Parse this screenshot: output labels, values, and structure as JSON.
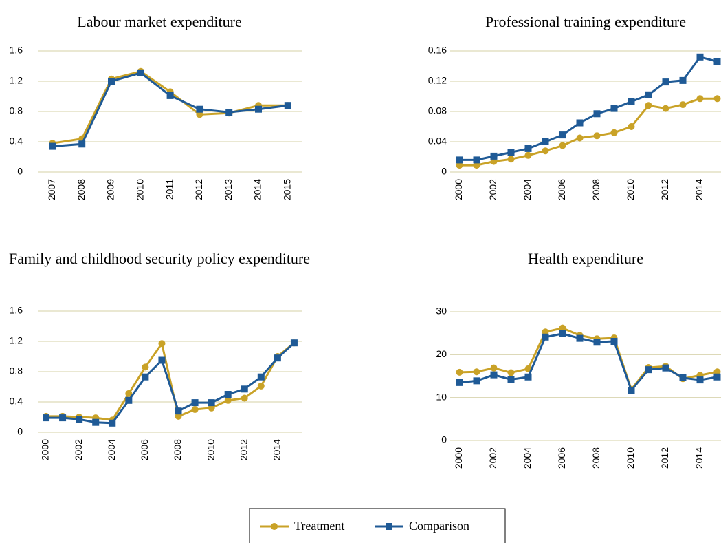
{
  "chart_data": [
    {
      "type": "line",
      "title": "Labour market expenditure",
      "categories": [
        "2007",
        "2008",
        "2009",
        "2010",
        "2011",
        "2012",
        "2013",
        "2014",
        "2015"
      ],
      "series": [
        {
          "name": "Treatment",
          "color": "#c9a227",
          "marker": "circle",
          "values": [
            0.38,
            0.44,
            1.23,
            1.33,
            1.06,
            0.76,
            0.78,
            0.88,
            0.88
          ]
        },
        {
          "name": "Comparison",
          "color": "#1f5a96",
          "marker": "square",
          "values": [
            0.34,
            0.37,
            1.2,
            1.31,
            1.01,
            0.83,
            0.79,
            0.83,
            0.88
          ]
        }
      ],
      "ylim": [
        0,
        1.6
      ],
      "yticks": [
        0,
        0.4,
        0.8,
        1.2,
        1.6
      ],
      "grid": true
    },
    {
      "type": "line",
      "title": "Professional training expenditure",
      "categories": [
        "2000",
        null,
        "2002",
        null,
        "2004",
        null,
        "2006",
        null,
        "2008",
        null,
        "2010",
        null,
        "2012",
        null,
        "2014",
        null
      ],
      "series": [
        {
          "name": "Treatment",
          "color": "#c9a227",
          "marker": "circle",
          "values": [
            0.009,
            0.009,
            0.014,
            0.017,
            0.022,
            0.028,
            0.035,
            0.045,
            0.048,
            0.052,
            0.06,
            0.088,
            0.084,
            0.089,
            0.097,
            0.097
          ]
        },
        {
          "name": "Comparison",
          "color": "#1f5a96",
          "marker": "square",
          "values": [
            0.016,
            0.016,
            0.021,
            0.026,
            0.031,
            0.04,
            0.049,
            0.065,
            0.077,
            0.084,
            0.093,
            0.102,
            0.119,
            0.121,
            0.152,
            0.146
          ]
        }
      ],
      "ylim": [
        0,
        0.16
      ],
      "yticks": [
        0,
        0.04,
        0.08,
        0.12,
        0.16
      ],
      "grid": true
    },
    {
      "type": "line",
      "title": "Family and childhood security policy expenditure",
      "categories": [
        "2000",
        null,
        "2002",
        null,
        "2004",
        null,
        "2006",
        null,
        "2008",
        null,
        "2010",
        null,
        "2012",
        null,
        "2014",
        null
      ],
      "series": [
        {
          "name": "Treatment",
          "color": "#c9a227",
          "marker": "circle",
          "values": [
            0.21,
            0.21,
            0.2,
            0.19,
            0.16,
            0.51,
            0.86,
            1.17,
            0.21,
            0.3,
            0.32,
            0.42,
            0.45,
            0.61,
            1.0,
            1.18
          ]
        },
        {
          "name": "Comparison",
          "color": "#1f5a96",
          "marker": "square",
          "values": [
            0.19,
            0.19,
            0.17,
            0.13,
            0.12,
            0.42,
            0.73,
            0.95,
            0.28,
            0.39,
            0.39,
            0.5,
            0.57,
            0.73,
            0.98,
            1.18
          ]
        }
      ],
      "ylim": [
        0,
        1.6
      ],
      "yticks": [
        0,
        0.4,
        0.8,
        1.2,
        1.6
      ],
      "grid": true
    },
    {
      "type": "line",
      "title": "Health expenditure",
      "categories": [
        "2000",
        null,
        "2002",
        null,
        "2004",
        null,
        "2006",
        null,
        "2008",
        null,
        "2010",
        null,
        "2012",
        null,
        "2014",
        null
      ],
      "series": [
        {
          "name": "Treatment",
          "color": "#c9a227",
          "marker": "circle",
          "values": [
            15.9,
            16.0,
            16.9,
            15.8,
            16.7,
            25.3,
            26.2,
            24.5,
            23.7,
            23.9,
            11.9,
            17.0,
            17.3,
            14.4,
            15.2,
            16.0
          ]
        },
        {
          "name": "Comparison",
          "color": "#1f5a96",
          "marker": "square",
          "values": [
            13.5,
            13.9,
            15.3,
            14.2,
            14.8,
            24.1,
            24.9,
            23.8,
            22.9,
            23.1,
            11.7,
            16.5,
            16.9,
            14.6,
            14.1,
            14.8
          ]
        }
      ],
      "ylim": [
        0,
        30
      ],
      "yticks": [
        0,
        10,
        20,
        30
      ],
      "grid": true
    }
  ]
}
